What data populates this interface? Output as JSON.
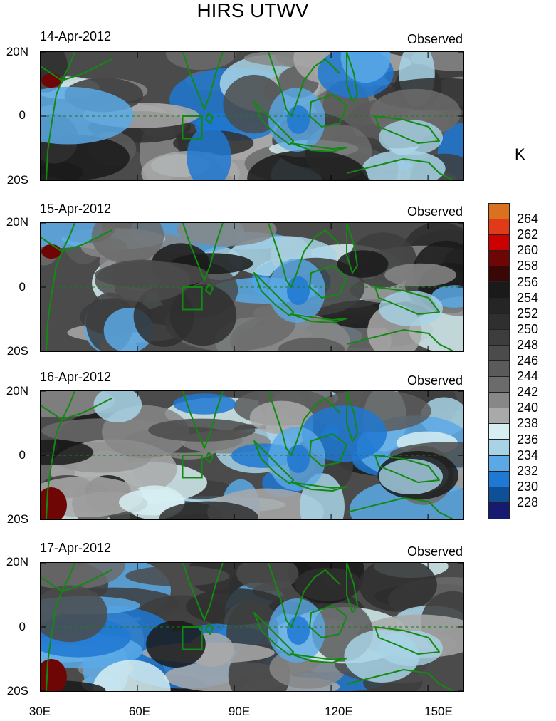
{
  "figure_title": "HIRS UTWV",
  "units": "K",
  "panels": [
    {
      "date": "14-Apr-2012",
      "label": "Observed"
    },
    {
      "date": "15-Apr-2012",
      "label": "Observed"
    },
    {
      "date": "16-Apr-2012",
      "label": "Observed"
    },
    {
      "date": "17-Apr-2012",
      "label": "Observed"
    }
  ],
  "lat_ticks": [
    "20N",
    "0",
    "20S"
  ],
  "lon_ticks": [
    "30E",
    "60E",
    "90E",
    "120E",
    "150E"
  ],
  "colorbar": {
    "levels": [
      "264",
      "262",
      "260",
      "258",
      "256",
      "254",
      "252",
      "250",
      "248",
      "246",
      "244",
      "242",
      "240",
      "238",
      "236",
      "234",
      "232",
      "230",
      "228"
    ],
    "colors": [
      "#d9711f",
      "#e03a18",
      "#cc0000",
      "#6e0606",
      "#3a0707",
      "#1a1a1a",
      "#252525",
      "#2f2f2f",
      "#3d3d3d",
      "#4b4b4b",
      "#5a5a5a",
      "#6b6b6b",
      "#878787",
      "#a9a9a9",
      "#d6eef2",
      "#a8d3e6",
      "#5aa9e6",
      "#1f78d1",
      "#0f4f98",
      "#161a70"
    ]
  }
}
